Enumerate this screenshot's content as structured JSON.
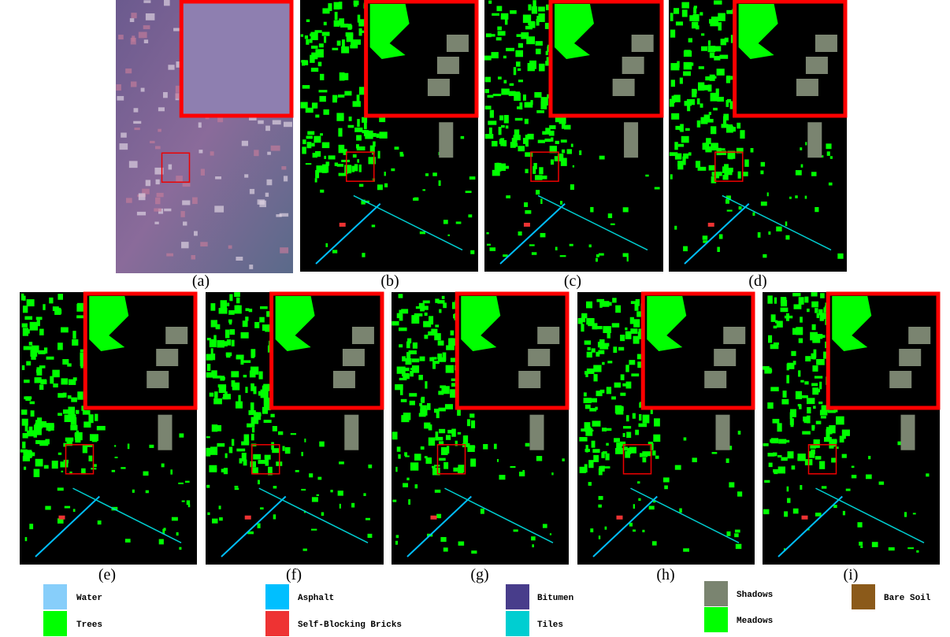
{
  "panels": [
    {
      "label": "(a)"
    },
    {
      "label": "(b)"
    },
    {
      "label": "(c)"
    },
    {
      "label": "(d)"
    },
    {
      "label": "(e)"
    },
    {
      "label": "(f)"
    },
    {
      "label": "(g)"
    },
    {
      "label": "(h)"
    },
    {
      "label": "(i)"
    }
  ],
  "legend": [
    {
      "name": "Water",
      "color": "#87cefa"
    },
    {
      "name": "Trees",
      "color": "#00ff00"
    },
    {
      "name": "Asphalt",
      "color": "#00bfff"
    },
    {
      "name": "Self-Blocking Bricks",
      "color": "#ee3333"
    },
    {
      "name": "Bitumen",
      "color": "#483d8b"
    },
    {
      "name": "Tiles",
      "color": "#00ced1"
    },
    {
      "name": "Shadows",
      "color": "#7a8470"
    },
    {
      "name": "Meadows",
      "color": "#00ff00"
    },
    {
      "name": "Bare Soil",
      "color": "#8b5a1a"
    }
  ]
}
